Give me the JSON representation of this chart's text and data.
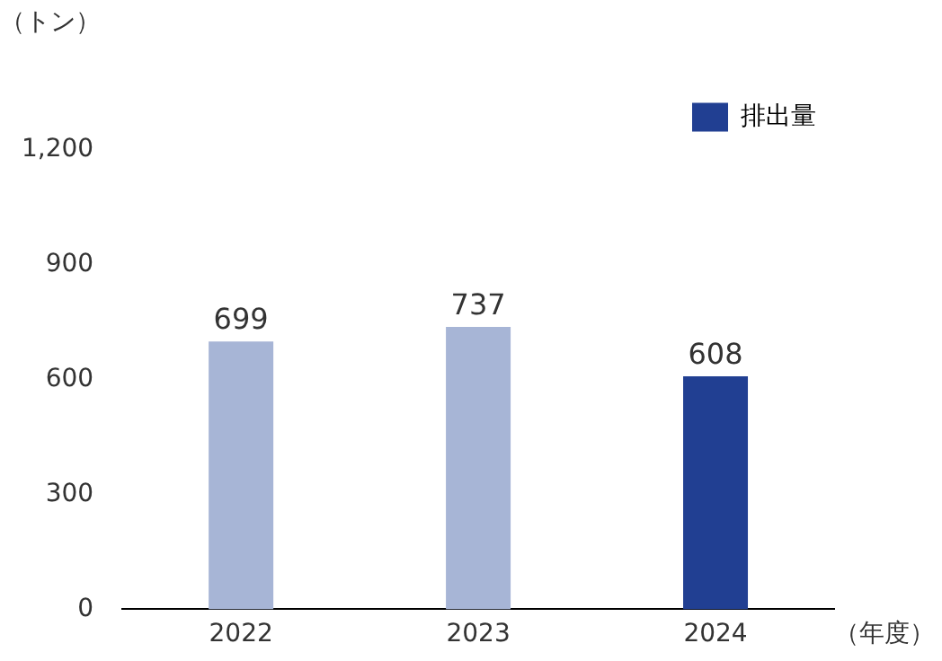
{
  "chart_data": {
    "type": "bar",
    "ylabel": "（トン）",
    "xlabel": "（年度）",
    "categories": [
      "2022",
      "2023",
      "2024"
    ],
    "series": [
      {
        "name": "排出量",
        "color": "#213f92",
        "colors": [
          "#a7b5d6",
          "#a7b5d6",
          "#213f92"
        ],
        "values": [
          699,
          737,
          608
        ]
      }
    ],
    "ylim": [
      0,
      1200
    ],
    "yticks": [
      0,
      300,
      600,
      900,
      {
        "value": 1200,
        "label": "1,200"
      }
    ],
    "grid": false,
    "legend": "top right",
    "data_labels": true
  }
}
